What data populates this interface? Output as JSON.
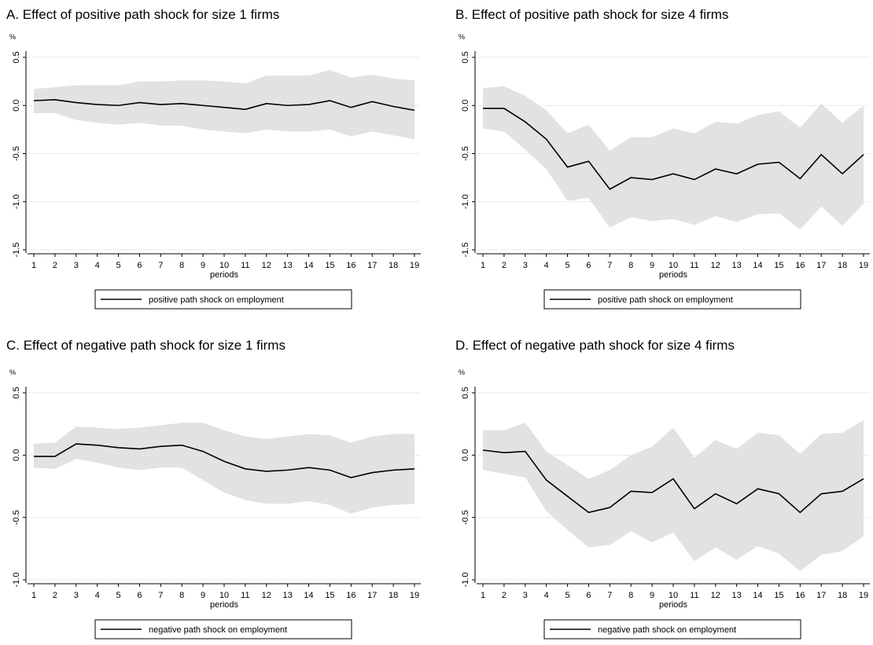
{
  "chart_data": [
    {
      "type": "line",
      "title": "A. Effect of positive path shock for size 1 firms",
      "y_unit": "%",
      "xlabel": "periods",
      "x": [
        1,
        2,
        3,
        4,
        5,
        6,
        7,
        8,
        9,
        10,
        11,
        12,
        13,
        14,
        15,
        16,
        17,
        18,
        19
      ],
      "xticks": [
        1,
        2,
        3,
        4,
        5,
        6,
        7,
        8,
        9,
        10,
        11,
        12,
        13,
        14,
        15,
        16,
        17,
        18,
        19
      ],
      "xlim": [
        1,
        19
      ],
      "ylim": [
        -1.5,
        0.5
      ],
      "yticks": [
        0.5,
        {
          "value": 0,
          "label": "0.0"
        },
        -0.5,
        {
          "value": -1,
          "label": "-1.0"
        },
        -1.5
      ],
      "grid": true,
      "series": [
        {
          "name": "positive path shock on employment",
          "color": "#000000",
          "values": [
            0.05,
            0.06,
            0.03,
            0.01,
            0.0,
            0.03,
            0.01,
            0.02,
            0.0,
            -0.02,
            -0.04,
            0.02,
            0.0,
            0.01,
            0.05,
            -0.02,
            0.04,
            -0.01,
            -0.05
          ]
        }
      ],
      "band": {
        "color": "#e2e2e2",
        "upper": [
          0.17,
          0.19,
          0.21,
          0.21,
          0.21,
          0.25,
          0.25,
          0.26,
          0.26,
          0.25,
          0.23,
          0.31,
          0.31,
          0.31,
          0.37,
          0.29,
          0.32,
          0.28,
          0.26
        ],
        "lower": [
          -0.08,
          -0.08,
          -0.15,
          -0.18,
          -0.2,
          -0.18,
          -0.21,
          -0.21,
          -0.25,
          -0.27,
          -0.29,
          -0.25,
          -0.27,
          -0.27,
          -0.25,
          -0.32,
          -0.27,
          -0.31,
          -0.35
        ]
      }
    },
    {
      "type": "line",
      "title": "B. Effect of positive path shock for size 4 firms",
      "y_unit": "%",
      "xlabel": "periods",
      "x": [
        1,
        2,
        3,
        4,
        5,
        6,
        7,
        8,
        9,
        10,
        11,
        12,
        13,
        14,
        15,
        16,
        17,
        18,
        19
      ],
      "xticks": [
        1,
        2,
        3,
        4,
        5,
        6,
        7,
        8,
        9,
        10,
        11,
        12,
        13,
        14,
        15,
        16,
        17,
        18,
        19
      ],
      "xlim": [
        1,
        19
      ],
      "ylim": [
        -1.5,
        0.5
      ],
      "yticks": [
        0.5,
        {
          "value": 0,
          "label": "0.0"
        },
        -0.5,
        {
          "value": -1,
          "label": "-1.0"
        },
        -1.5
      ],
      "grid": true,
      "series": [
        {
          "name": "positive path shock on employment",
          "color": "#000000",
          "values": [
            -0.03,
            -0.03,
            -0.17,
            -0.35,
            -0.64,
            -0.58,
            -0.87,
            -0.75,
            -0.77,
            -0.71,
            -0.77,
            -0.66,
            -0.71,
            -0.61,
            -0.59,
            -0.76,
            -0.51,
            -0.71,
            -0.51
          ]
        }
      ],
      "band": {
        "color": "#e2e2e2",
        "upper": [
          0.18,
          0.2,
          0.1,
          -0.05,
          -0.29,
          -0.2,
          -0.47,
          -0.33,
          -0.33,
          -0.24,
          -0.29,
          -0.17,
          -0.19,
          -0.1,
          -0.06,
          -0.23,
          0.02,
          -0.18,
          0.0
        ],
        "lower": [
          -0.24,
          -0.27,
          -0.46,
          -0.66,
          -0.99,
          -0.96,
          -1.27,
          -1.16,
          -1.2,
          -1.18,
          -1.24,
          -1.15,
          -1.21,
          -1.13,
          -1.12,
          -1.29,
          -1.05,
          -1.25,
          -1.02
        ]
      }
    },
    {
      "type": "line",
      "title": "C. Effect of negative path shock for size 1 firms",
      "y_unit": "%",
      "xlabel": "periods",
      "x": [
        1,
        2,
        3,
        4,
        5,
        6,
        7,
        8,
        9,
        10,
        11,
        12,
        13,
        14,
        15,
        16,
        17,
        18,
        19
      ],
      "xticks": [
        1,
        2,
        3,
        4,
        5,
        6,
        7,
        8,
        9,
        10,
        11,
        12,
        13,
        14,
        15,
        16,
        17,
        18,
        19
      ],
      "xlim": [
        1,
        19
      ],
      "ylim": [
        -1,
        0.5
      ],
      "yticks": [
        0.5,
        {
          "value": 0,
          "label": "0.0"
        },
        -0.5,
        {
          "value": -1,
          "label": "-1.0"
        }
      ],
      "grid": true,
      "series": [
        {
          "name": "negative path shock on employment",
          "color": "#000000",
          "values": [
            -0.01,
            -0.01,
            0.09,
            0.08,
            0.06,
            0.05,
            0.07,
            0.08,
            0.03,
            -0.05,
            -0.11,
            -0.13,
            -0.12,
            -0.1,
            -0.12,
            -0.18,
            -0.14,
            -0.12,
            -0.11
          ]
        }
      ],
      "band": {
        "color": "#e2e2e2",
        "upper": [
          0.09,
          0.1,
          0.23,
          0.22,
          0.21,
          0.22,
          0.24,
          0.26,
          0.26,
          0.2,
          0.15,
          0.13,
          0.15,
          0.17,
          0.16,
          0.1,
          0.15,
          0.17,
          0.17
        ],
        "lower": [
          -0.1,
          -0.11,
          -0.03,
          -0.06,
          -0.1,
          -0.12,
          -0.1,
          -0.1,
          -0.2,
          -0.3,
          -0.36,
          -0.39,
          -0.39,
          -0.37,
          -0.4,
          -0.47,
          -0.42,
          -0.4,
          -0.39
        ]
      }
    },
    {
      "type": "line",
      "title": "D. Effect of negative path shock for size 4 firms",
      "y_unit": "%",
      "xlabel": "periods",
      "x": [
        1,
        2,
        3,
        4,
        5,
        6,
        7,
        8,
        9,
        10,
        11,
        12,
        13,
        14,
        15,
        16,
        17,
        18,
        19
      ],
      "xticks": [
        1,
        2,
        3,
        4,
        5,
        6,
        7,
        8,
        9,
        10,
        11,
        12,
        13,
        14,
        15,
        16,
        17,
        18,
        19
      ],
      "xlim": [
        1,
        19
      ],
      "ylim": [
        -1,
        0.5
      ],
      "yticks": [
        0.5,
        {
          "value": 0,
          "label": "0.0"
        },
        -0.5,
        {
          "value": -1,
          "label": "-1.0"
        }
      ],
      "grid": true,
      "series": [
        {
          "name": "negative path shock on employment",
          "color": "#000000",
          "values": [
            0.04,
            0.02,
            0.03,
            -0.2,
            -0.33,
            -0.46,
            -0.42,
            -0.29,
            -0.3,
            -0.19,
            -0.43,
            -0.31,
            -0.39,
            -0.27,
            -0.31,
            -0.46,
            -0.31,
            -0.29,
            -0.19
          ]
        }
      ],
      "band": {
        "color": "#e2e2e2",
        "upper": [
          0.2,
          0.2,
          0.26,
          0.03,
          -0.08,
          -0.19,
          -0.12,
          0.0,
          0.07,
          0.22,
          -0.02,
          0.12,
          0.05,
          0.18,
          0.16,
          0.01,
          0.17,
          0.18,
          0.28
        ],
        "lower": [
          -0.12,
          -0.15,
          -0.18,
          -0.45,
          -0.6,
          -0.74,
          -0.72,
          -0.61,
          -0.7,
          -0.62,
          -0.85,
          -0.74,
          -0.84,
          -0.73,
          -0.79,
          -0.93,
          -0.8,
          -0.77,
          -0.65
        ]
      }
    }
  ]
}
